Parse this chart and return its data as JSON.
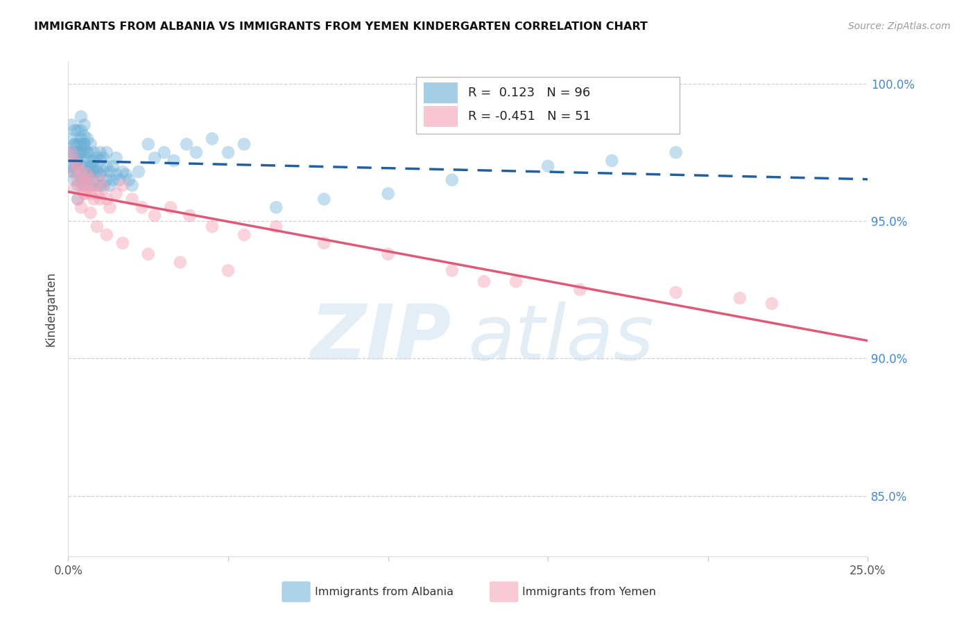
{
  "title": "IMMIGRANTS FROM ALBANIA VS IMMIGRANTS FROM YEMEN KINDERGARTEN CORRELATION CHART",
  "source": "Source: ZipAtlas.com",
  "ylabel": "Kindergarten",
  "x_min": 0.0,
  "x_max": 0.25,
  "y_min": 0.828,
  "y_max": 1.008,
  "albania_R": 0.123,
  "albania_N": 96,
  "yemen_R": -0.451,
  "yemen_N": 51,
  "albania_color": "#6aaed6",
  "albania_line_color": "#2060a0",
  "yemen_color": "#f4a0b5",
  "yemen_line_color": "#e05878",
  "legend_label_albania": "Immigrants from Albania",
  "legend_label_yemen": "Immigrants from Yemen",
  "yticks": [
    0.85,
    0.9,
    0.95,
    1.0
  ],
  "ytick_labels": [
    "85.0%",
    "90.0%",
    "95.0%",
    "100.0%"
  ],
  "albania_x": [
    0.001,
    0.001,
    0.001,
    0.001,
    0.002,
    0.002,
    0.002,
    0.002,
    0.002,
    0.002,
    0.003,
    0.003,
    0.003,
    0.003,
    0.003,
    0.003,
    0.004,
    0.004,
    0.004,
    0.004,
    0.004,
    0.004,
    0.005,
    0.005,
    0.005,
    0.005,
    0.005,
    0.005,
    0.006,
    0.006,
    0.006,
    0.006,
    0.006,
    0.007,
    0.007,
    0.007,
    0.007,
    0.008,
    0.008,
    0.008,
    0.008,
    0.009,
    0.009,
    0.009,
    0.01,
    0.01,
    0.01,
    0.01,
    0.011,
    0.011,
    0.011,
    0.012,
    0.012,
    0.012,
    0.013,
    0.013,
    0.014,
    0.014,
    0.015,
    0.015,
    0.016,
    0.017,
    0.018,
    0.019,
    0.02,
    0.022,
    0.025,
    0.027,
    0.03,
    0.033,
    0.037,
    0.04,
    0.045,
    0.05,
    0.055,
    0.065,
    0.08,
    0.1,
    0.12,
    0.15,
    0.17,
    0.19,
    0.007,
    0.008,
    0.009,
    0.006,
    0.005,
    0.004,
    0.003,
    0.002,
    0.001,
    0.001,
    0.002,
    0.003,
    0.004,
    0.005
  ],
  "albania_y": [
    0.98,
    0.975,
    0.97,
    0.985,
    0.975,
    0.97,
    0.978,
    0.983,
    0.965,
    0.968,
    0.972,
    0.978,
    0.983,
    0.968,
    0.963,
    0.958,
    0.975,
    0.97,
    0.965,
    0.978,
    0.983,
    0.988,
    0.972,
    0.967,
    0.963,
    0.976,
    0.981,
    0.985,
    0.97,
    0.965,
    0.975,
    0.98,
    0.968,
    0.972,
    0.967,
    0.963,
    0.978,
    0.97,
    0.965,
    0.975,
    0.968,
    0.968,
    0.973,
    0.963,
    0.972,
    0.967,
    0.963,
    0.975,
    0.968,
    0.973,
    0.963,
    0.97,
    0.965,
    0.975,
    0.968,
    0.963,
    0.97,
    0.965,
    0.967,
    0.973,
    0.965,
    0.968,
    0.967,
    0.965,
    0.963,
    0.968,
    0.978,
    0.973,
    0.975,
    0.972,
    0.978,
    0.975,
    0.98,
    0.975,
    0.978,
    0.955,
    0.958,
    0.96,
    0.965,
    0.97,
    0.972,
    0.975,
    0.97,
    0.972,
    0.968,
    0.975,
    0.978,
    0.98,
    0.975,
    0.972,
    0.968,
    0.975,
    0.978,
    0.972,
    0.975,
    0.978
  ],
  "yemen_x": [
    0.001,
    0.002,
    0.002,
    0.003,
    0.003,
    0.004,
    0.004,
    0.005,
    0.005,
    0.006,
    0.006,
    0.007,
    0.007,
    0.008,
    0.008,
    0.009,
    0.01,
    0.01,
    0.011,
    0.012,
    0.013,
    0.015,
    0.017,
    0.02,
    0.023,
    0.027,
    0.032,
    0.038,
    0.045,
    0.055,
    0.065,
    0.08,
    0.1,
    0.12,
    0.14,
    0.16,
    0.002,
    0.003,
    0.004,
    0.005,
    0.007,
    0.009,
    0.012,
    0.017,
    0.025,
    0.035,
    0.05,
    0.13,
    0.19,
    0.21,
    0.22
  ],
  "yemen_y": [
    0.975,
    0.972,
    0.968,
    0.97,
    0.965,
    0.968,
    0.963,
    0.965,
    0.96,
    0.962,
    0.967,
    0.96,
    0.965,
    0.958,
    0.963,
    0.96,
    0.965,
    0.958,
    0.962,
    0.958,
    0.955,
    0.96,
    0.963,
    0.958,
    0.955,
    0.952,
    0.955,
    0.952,
    0.948,
    0.945,
    0.948,
    0.942,
    0.938,
    0.932,
    0.928,
    0.925,
    0.962,
    0.958,
    0.955,
    0.96,
    0.953,
    0.948,
    0.945,
    0.942,
    0.938,
    0.935,
    0.932,
    0.928,
    0.924,
    0.922,
    0.92
  ]
}
